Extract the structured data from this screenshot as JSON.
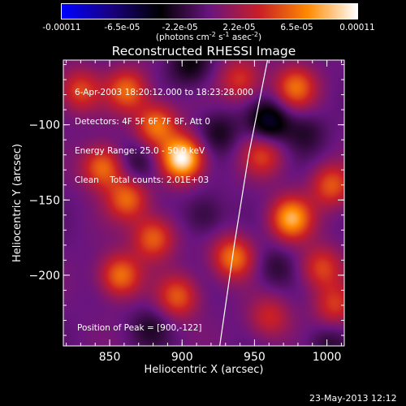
{
  "colorbar": {
    "tick_labels": [
      "-0.00011",
      "-6.5e-05",
      "-2.2e-05",
      "2.2e-05",
      "6.5e-05",
      "0.00011"
    ],
    "range": [
      -0.00011,
      0.00011
    ],
    "stops": [
      "#0000ff",
      "#1a0080",
      "#000000",
      "#6a1580",
      "#c81e28",
      "#ff8a00",
      "#ffffff"
    ]
  },
  "chart_data": {
    "type": "heatmap",
    "title": "Reconstructed RHESSI Image",
    "xlabel": "Heliocentric X (arcsec)",
    "ylabel": "Heliocentric Y (arcsec)",
    "xlim": [
      818,
      1012
    ],
    "ylim": [
      -247,
      -57
    ],
    "xticks": [
      "850",
      "900",
      "950",
      "1000"
    ],
    "yticks": [
      "-100",
      "-150",
      "-200"
    ],
    "info": [
      "6-Apr-2003 18:20:12.000 to 18:23:28.000",
      "Detectors: 4F 5F 6F 7F 8F, Att 0",
      "Energy Range: 25.0 - 50.0 keV",
      "Clean    Total counts: 2.01E+03"
    ],
    "peak_label": "Position of Peak = [900,-122]",
    "peak": [
      900,
      -122
    ],
    "limb_points": [
      [
        959,
        -57
      ],
      [
        946,
        -120
      ],
      [
        936,
        -180
      ],
      [
        926,
        -247
      ]
    ],
    "blobs": [
      {
        "x": 900,
        "y": -122,
        "v": 1.0
      },
      {
        "x": 882,
        "y": -100,
        "v": 0.6
      },
      {
        "x": 862,
        "y": -77,
        "v": 0.55
      },
      {
        "x": 829,
        "y": -77,
        "v": 0.45
      },
      {
        "x": 845,
        "y": -128,
        "v": 0.6
      },
      {
        "x": 862,
        "y": -149,
        "v": 0.55
      },
      {
        "x": 880,
        "y": -175,
        "v": 0.55
      },
      {
        "x": 857,
        "y": -200,
        "v": 0.6
      },
      {
        "x": 897,
        "y": -214,
        "v": 0.5
      },
      {
        "x": 935,
        "y": -188,
        "v": 0.6
      },
      {
        "x": 940,
        "y": -70,
        "v": 0.4
      },
      {
        "x": 955,
        "y": -120,
        "v": 0.4
      },
      {
        "x": 978,
        "y": -75,
        "v": 0.55
      },
      {
        "x": 975,
        "y": -162,
        "v": 0.75
      },
      {
        "x": 1003,
        "y": -140,
        "v": 0.5
      },
      {
        "x": 996,
        "y": -195,
        "v": 0.45
      },
      {
        "x": 1005,
        "y": -220,
        "v": 0.4
      },
      {
        "x": 960,
        "y": -228,
        "v": 0.35
      },
      {
        "x": 870,
        "y": -125,
        "v": -0.25
      },
      {
        "x": 960,
        "y": -98,
        "v": -0.45
      },
      {
        "x": 925,
        "y": -105,
        "v": -0.25
      },
      {
        "x": 905,
        "y": -60,
        "v": -0.3
      },
      {
        "x": 915,
        "y": -160,
        "v": -0.2
      },
      {
        "x": 985,
        "y": -105,
        "v": -0.2
      },
      {
        "x": 964,
        "y": -195,
        "v": -0.2
      },
      {
        "x": 878,
        "y": -235,
        "v": -0.2
      },
      {
        "x": 1000,
        "y": -245,
        "v": -0.2
      }
    ]
  },
  "footer": {
    "timestamp": "23-May-2013 12:12"
  }
}
